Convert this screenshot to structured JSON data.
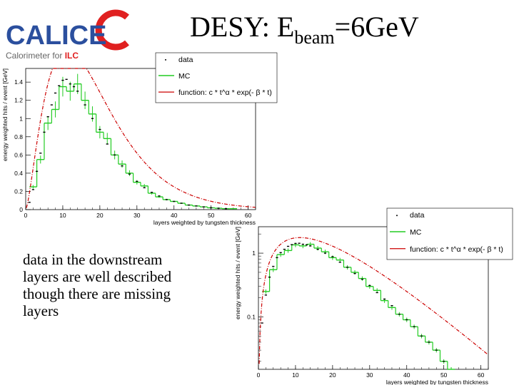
{
  "header": {
    "logo": {
      "wordmark": "CALICE",
      "tagline_prefix": "Calorimeter for ",
      "tagline_highlight": "ILC",
      "colors": {
        "blue": "#2b4f9e",
        "red": "#e02020",
        "grey": "#666666"
      }
    },
    "title": {
      "prefix": "DESY: E",
      "subscript": "beam",
      "suffix": "=6GeV"
    }
  },
  "caption": {
    "lines": [
      "data in the downstream",
      "layers are well described",
      "though there are missing",
      "layers"
    ]
  },
  "colors": {
    "data": "#000000",
    "mc": "#22cc22",
    "fit": "#cc0000"
  },
  "chart_data": [
    {
      "type": "line",
      "xlabel": "layers weighted by tungsten thickness",
      "ylabel": "energy weighted hits / event [GeV]",
      "xlim": [
        0,
        62
      ],
      "ylim": [
        0,
        1.55
      ],
      "log_y": false,
      "xticks": [
        "0",
        "10",
        "20",
        "30",
        "40",
        "50",
        "60"
      ],
      "yticks": [
        "0",
        "0.2",
        "0.4",
        "0.6",
        "0.8",
        "1",
        "1.2",
        "1.4"
      ],
      "legend": {
        "placement": "top-right",
        "entries": [
          "data",
          "MC",
          "function: c * t^α * exp(- β * t)"
        ]
      },
      "series": [
        {
          "name": "data",
          "style": "points",
          "x": [
            1,
            2,
            3,
            4,
            5,
            6,
            7,
            8,
            9,
            10,
            11,
            12,
            13,
            14,
            16,
            18,
            20,
            22,
            24,
            26,
            28,
            30,
            32,
            34,
            36,
            38,
            40,
            42,
            44,
            46,
            48,
            50,
            52,
            54
          ],
          "y": [
            0.08,
            0.22,
            0.42,
            0.62,
            0.85,
            1.02,
            1.15,
            1.28,
            1.36,
            1.42,
            1.43,
            1.38,
            1.35,
            1.3,
            1.15,
            1.0,
            0.88,
            0.72,
            0.6,
            0.48,
            0.39,
            0.31,
            0.24,
            0.19,
            0.15,
            0.11,
            0.09,
            0.07,
            0.05,
            0.04,
            0.03,
            0.02,
            0.015,
            0.01
          ]
        },
        {
          "name": "MC",
          "style": "step",
          "x": [
            2,
            4,
            6,
            8,
            10,
            12,
            14,
            16,
            18,
            20,
            22,
            24,
            26,
            28,
            30,
            32,
            34,
            36,
            38,
            40,
            42,
            44,
            46,
            48,
            50,
            52,
            54,
            56
          ],
          "y": [
            0.25,
            0.55,
            0.95,
            1.1,
            1.35,
            1.3,
            1.38,
            1.2,
            1.05,
            0.85,
            0.78,
            0.6,
            0.5,
            0.4,
            0.3,
            0.26,
            0.18,
            0.14,
            0.11,
            0.09,
            0.07,
            0.05,
            0.04,
            0.03,
            0.02,
            0.015,
            0.01,
            0.01
          ]
        },
        {
          "name": "function: c * t^α * exp(- β * t)",
          "style": "dashdot",
          "fit": {
            "c": 0.21,
            "alpha": 1.5,
            "beta": 0.134
          }
        }
      ]
    },
    {
      "type": "line",
      "xlabel": "layers weighted by tungsten thickness",
      "ylabel": "energy weighted hits / event [GeV]",
      "xlim": [
        0,
        62
      ],
      "ylim": [
        0.015,
        2.6
      ],
      "log_y": true,
      "xticks": [
        "0",
        "10",
        "20",
        "30",
        "40",
        "50",
        "60"
      ],
      "yticks": [
        "0.1",
        "1"
      ],
      "legend": {
        "placement": "top-right",
        "entries": [
          "data",
          "MC",
          "function: c * t^α * exp(- β * t)"
        ]
      },
      "series": [
        {
          "name": "data",
          "style": "points",
          "x": [
            1,
            2,
            3,
            4,
            5,
            6,
            7,
            8,
            9,
            10,
            11,
            12,
            13,
            14,
            16,
            18,
            20,
            22,
            24,
            26,
            28,
            30,
            32,
            34,
            36,
            38,
            40,
            42,
            44,
            46,
            48,
            50
          ],
          "y": [
            0.08,
            0.22,
            0.42,
            0.62,
            0.85,
            1.02,
            1.15,
            1.28,
            1.36,
            1.42,
            1.43,
            1.38,
            1.35,
            1.3,
            1.15,
            1.0,
            0.88,
            0.72,
            0.6,
            0.48,
            0.39,
            0.31,
            0.24,
            0.19,
            0.15,
            0.11,
            0.09,
            0.07,
            0.05,
            0.04,
            0.03,
            0.02
          ]
        },
        {
          "name": "MC",
          "style": "step",
          "x": [
            2,
            4,
            6,
            8,
            10,
            12,
            14,
            16,
            18,
            20,
            22,
            24,
            26,
            28,
            30,
            32,
            34,
            36,
            38,
            40,
            42,
            44,
            46,
            48,
            50,
            52
          ],
          "y": [
            0.25,
            0.55,
            0.95,
            1.1,
            1.35,
            1.3,
            1.38,
            1.2,
            1.05,
            0.85,
            0.78,
            0.6,
            0.5,
            0.4,
            0.3,
            0.26,
            0.18,
            0.14,
            0.11,
            0.09,
            0.07,
            0.05,
            0.04,
            0.03,
            0.02,
            0.015
          ]
        },
        {
          "name": "function: c * t^α * exp(- β * t)",
          "style": "dashdot",
          "fit": {
            "c": 0.21,
            "alpha": 1.5,
            "beta": 0.134
          }
        }
      ]
    }
  ]
}
